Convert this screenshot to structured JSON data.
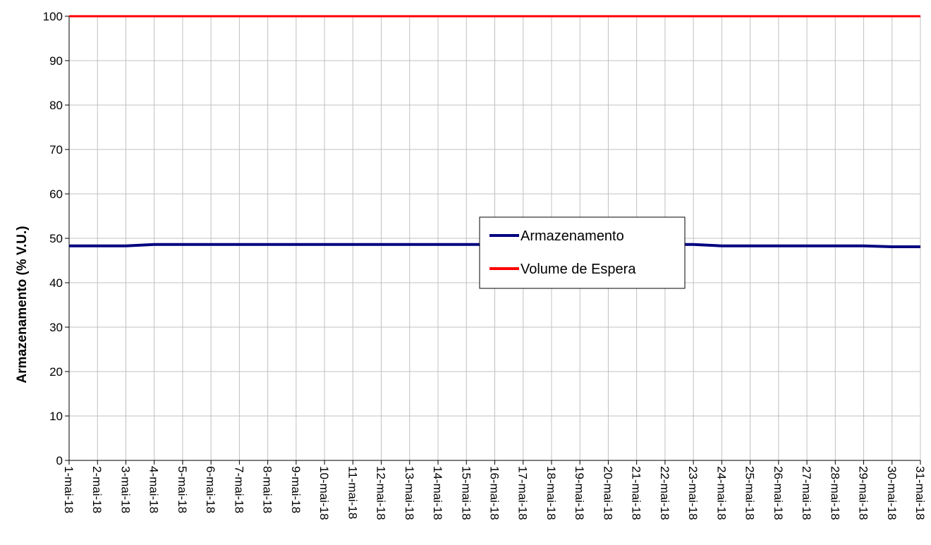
{
  "chart_data": {
    "type": "line",
    "ylabel": "Armazenamento (% V.U.)",
    "xlabel": "",
    "title": "",
    "ylim": [
      0,
      100
    ],
    "y_ticks": [
      0,
      10,
      20,
      30,
      40,
      50,
      60,
      70,
      80,
      90,
      100
    ],
    "grid": true,
    "legend_position": "center-right",
    "categories": [
      "1-mai-18",
      "2-mai-18",
      "3-mai-18",
      "4-mai-18",
      "5-mai-18",
      "6-mai-18",
      "7-mai-18",
      "8-mai-18",
      "9-mai-18",
      "10-mai-18",
      "11-mai-18",
      "12-mai-18",
      "13-mai-18",
      "14-mai-18",
      "15-mai-18",
      "16-mai-18",
      "17-mai-18",
      "18-mai-18",
      "19-mai-18",
      "20-mai-18",
      "21-mai-18",
      "22-mai-18",
      "23-mai-18",
      "24-mai-18",
      "25-mai-18",
      "26-mai-18",
      "27-mai-18",
      "28-mai-18",
      "29-mai-18",
      "30-mai-18",
      "31-mai-18"
    ],
    "series": [
      {
        "name": "Armazenamento",
        "color": "#000080",
        "values": [
          48.3,
          48.3,
          48.3,
          48.6,
          48.6,
          48.6,
          48.6,
          48.6,
          48.6,
          48.6,
          48.6,
          48.6,
          48.6,
          48.6,
          48.6,
          48.6,
          48.6,
          48.6,
          48.6,
          48.6,
          48.6,
          48.6,
          48.6,
          48.3,
          48.3,
          48.3,
          48.3,
          48.3,
          48.3,
          48.1,
          48.1
        ]
      },
      {
        "name": "Volume de Espera",
        "color": "#ff0000",
        "values": [
          100,
          100,
          100,
          100,
          100,
          100,
          100,
          100,
          100,
          100,
          100,
          100,
          100,
          100,
          100,
          100,
          100,
          100,
          100,
          100,
          100,
          100,
          100,
          100,
          100,
          100,
          100,
          100,
          100,
          100,
          100
        ]
      }
    ]
  }
}
